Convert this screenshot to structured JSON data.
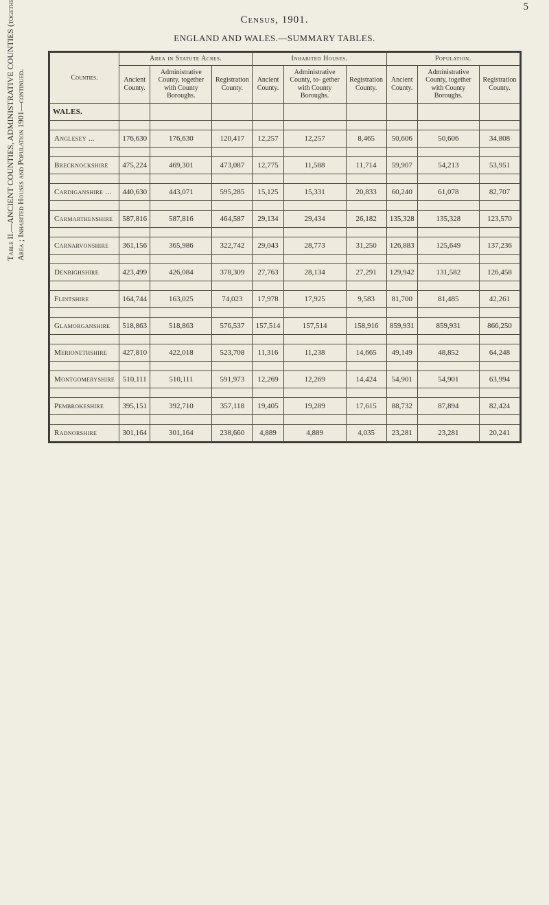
{
  "page_number": "5",
  "header_title": "Census, 1901.",
  "subtitle": "ENGLAND AND WALES.—SUMMARY TABLES.",
  "side_title_main": "Table II.—ANCIENT COUNTIES, ADMINISTRATIVE COUNTIES (together with COUNTY BOROUGHS), and REGISTRATION COUNTIES.—",
  "side_title_sub": "Area ; Inhabited Houses and Population 1901—continued.",
  "group_labels": {
    "area": "Area in Statute Acres.",
    "houses": "Inhabited Houses.",
    "population": "Population."
  },
  "col_labels": {
    "counties": "Counties.",
    "ancient": "Ancient County.",
    "admin": "Administrative County, together with County Boroughs.",
    "admin2": "Administrative County, to- gether with County Boroughs.",
    "reg": "Registration County."
  },
  "section_label": "WALES.",
  "rows": [
    {
      "county": "Anglesey ...",
      "area_anc": "176,630",
      "area_adm": "176,630",
      "area_reg": "120,417",
      "hous_anc": "12,257",
      "hous_adm": "12,257",
      "hous_reg": "8,465",
      "pop_anc": "50,606",
      "pop_adm": "50,606",
      "pop_reg": "34,808"
    },
    {
      "county": "Brecknockshire",
      "area_anc": "475,224",
      "area_adm": "469,301",
      "area_reg": "473,087",
      "hous_anc": "12,775",
      "hous_adm": "11,588",
      "hous_reg": "11,714",
      "pop_anc": "59,907",
      "pop_adm": "54,213",
      "pop_reg": "53,951"
    },
    {
      "county": "Cardiganshire ...",
      "area_anc": "440,630",
      "area_adm": "443,071",
      "area_reg": "595,285",
      "hous_anc": "15,125",
      "hous_adm": "15,331",
      "hous_reg": "20,833",
      "pop_anc": "60,240",
      "pop_adm": "61,078",
      "pop_reg": "82,707"
    },
    {
      "county": "Carmarthenshire",
      "area_anc": "587,816",
      "area_adm": "587,816",
      "area_reg": "464,587",
      "hous_anc": "29,134",
      "hous_adm": "29,434",
      "hous_reg": "26,182",
      "pop_anc": "135,328",
      "pop_adm": "135,328",
      "pop_reg": "123,570"
    },
    {
      "county": "Carnarvonshire",
      "area_anc": "361,156",
      "area_adm": "365,986",
      "area_reg": "322,742",
      "hous_anc": "29,043",
      "hous_adm": "28,773",
      "hous_reg": "31,250",
      "pop_anc": "126,883",
      "pop_adm": "125,649",
      "pop_reg": "137,236"
    },
    {
      "county": "Denbighshire",
      "area_anc": "423,499",
      "area_adm": "426,084",
      "area_reg": "378,309",
      "hous_anc": "27,763",
      "hous_adm": "28,134",
      "hous_reg": "27,291",
      "pop_anc": "129,942",
      "pop_adm": "131,582",
      "pop_reg": "126,458"
    },
    {
      "county": "Flintshire",
      "area_anc": "164,744",
      "area_adm": "163,025",
      "area_reg": "74,023",
      "hous_anc": "17,978",
      "hous_adm": "17,925",
      "hous_reg": "9,583",
      "pop_anc": "81,700",
      "pop_adm": "81,485",
      "pop_reg": "42,261"
    },
    {
      "county": "Glamorganshire",
      "area_anc": "518,863",
      "area_adm": "518,863",
      "area_reg": "576,537",
      "hous_anc": "157,514",
      "hous_adm": "157,514",
      "hous_reg": "158,916",
      "pop_anc": "859,931",
      "pop_adm": "859,931",
      "pop_reg": "866,250"
    },
    {
      "county": "Merionethshire",
      "area_anc": "427,810",
      "area_adm": "422,018",
      "area_reg": "523,708",
      "hous_anc": "11,316",
      "hous_adm": "11,238",
      "hous_reg": "14,665",
      "pop_anc": "49,149",
      "pop_adm": "48,852",
      "pop_reg": "64,248"
    },
    {
      "county": "Montgomeryshire",
      "area_anc": "510,111",
      "area_adm": "510,111",
      "area_reg": "591,973",
      "hous_anc": "12,269",
      "hous_adm": "12,269",
      "hous_reg": "14,424",
      "pop_anc": "54,901",
      "pop_adm": "54,901",
      "pop_reg": "63,994"
    },
    {
      "county": "Pembrokeshire",
      "area_anc": "395,151",
      "area_adm": "392,710",
      "area_reg": "357,118",
      "hous_anc": "19,405",
      "hous_adm": "19,289",
      "hous_reg": "17,615",
      "pop_anc": "88,732",
      "pop_adm": "87,894",
      "pop_reg": "82,424"
    },
    {
      "county": "Radnorshire",
      "area_anc": "301,164",
      "area_adm": "301,164",
      "area_reg": "238,660",
      "hous_anc": "4,889",
      "hous_adm": "4,889",
      "hous_reg": "4,035",
      "pop_anc": "23,281",
      "pop_adm": "23,281",
      "pop_reg": "20,241"
    }
  ],
  "style": {
    "background_color": "#f0ede3",
    "border_color": "#4a4a3e",
    "text_color": "#2a2a2a",
    "body_fontsize": 11,
    "header_fontsize": 10,
    "title_fontsize": 15
  }
}
